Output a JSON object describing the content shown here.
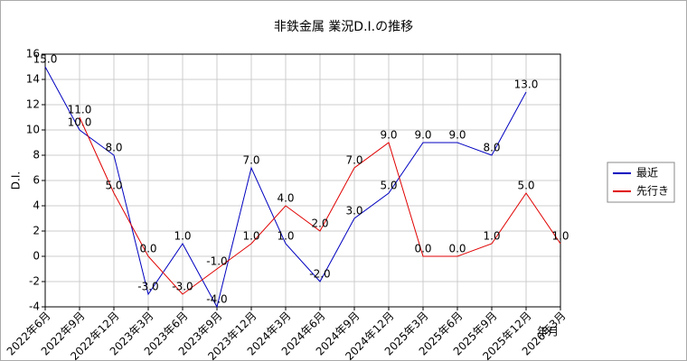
{
  "chart_data": {
    "type": "line",
    "title": "非鉄金属 業況D.I.の推移",
    "y_label": "D.I.",
    "x_label": "年月",
    "categories": [
      "2022年6月",
      "2022年9月",
      "2022年12月",
      "2023年3月",
      "2023年6月",
      "2023年9月",
      "2023年12月",
      "2024年3月",
      "2024年6月",
      "2024年9月",
      "2024年12月",
      "2025年3月",
      "2025年6月",
      "2025年9月",
      "2025年12月",
      "2026年3月"
    ],
    "series": [
      {
        "name": "最近",
        "color": "#0000c0",
        "values": [
          15,
          10,
          8,
          -3,
          1,
          -4,
          7,
          1,
          -2,
          3,
          5,
          9,
          9,
          8,
          13,
          null
        ],
        "value_labels": [
          "15.0",
          "10.0",
          "8.0",
          "-3.0",
          "1.0",
          "-4.0",
          "7.0",
          "1.0",
          "-2.0",
          "3.0",
          "5.0",
          "9.0",
          "9.0",
          "8.0",
          "13.0",
          null
        ]
      },
      {
        "name": "先行き",
        "color": "#e00000",
        "values": [
          null,
          11,
          5,
          0,
          -3,
          -1,
          1,
          4,
          2,
          7,
          9,
          0,
          0,
          1,
          5,
          1
        ],
        "value_labels": [
          null,
          "11.0",
          "5.0",
          "0.0",
          "-3.0",
          "-1.0",
          "1.0",
          "4.0",
          "2.0",
          "7.0",
          "9.0",
          "0.0",
          "0.0",
          "1.0",
          "5.0",
          "1.0"
        ]
      }
    ],
    "ylim": [
      -4,
      16
    ],
    "yticks": [
      -4,
      -2,
      0,
      2,
      4,
      6,
      8,
      10,
      12,
      14,
      16
    ],
    "grid": true,
    "legend": "right"
  }
}
